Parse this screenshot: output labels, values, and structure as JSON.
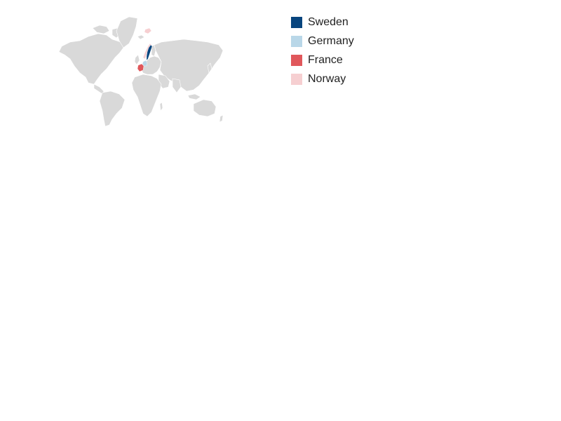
{
  "map": {
    "base_color": "#d9d9d9",
    "highlighted": [
      {
        "country": "Sweden",
        "color": "#08457e"
      },
      {
        "country": "Germany",
        "color": "#b9d7e8"
      },
      {
        "country": "France",
        "color": "#e0575b"
      },
      {
        "country": "Norway",
        "color": "#f6cfd1"
      }
    ]
  },
  "legend": {
    "items": [
      {
        "label": "Sweden",
        "color": "#08457e"
      },
      {
        "label": "Germany",
        "color": "#b9d7e8"
      },
      {
        "label": "France",
        "color": "#e0575b"
      },
      {
        "label": "Norway",
        "color": "#f6cfd1"
      }
    ]
  }
}
